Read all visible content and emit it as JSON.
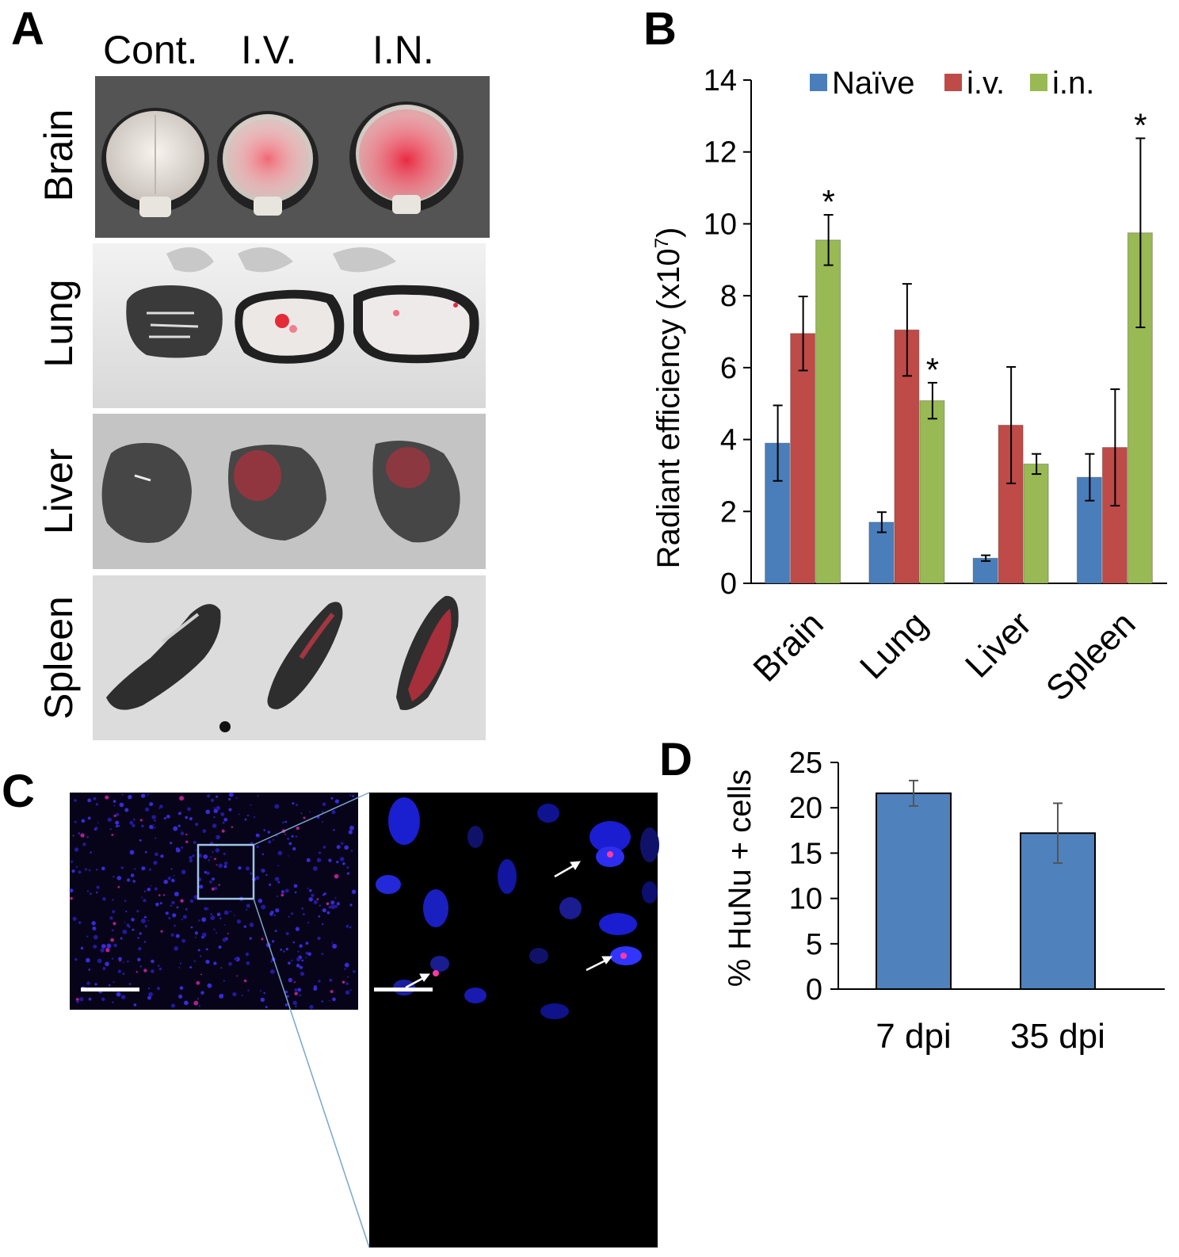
{
  "panel_labels": {
    "a": "A",
    "b": "B",
    "c": "C",
    "d": "D"
  },
  "panel_a": {
    "column_headers": [
      "Cont.",
      "I.V.",
      "I.N."
    ],
    "row_labels": [
      "Brain",
      "Lung",
      "Liver",
      "Spleen"
    ]
  },
  "chart_data": [
    {
      "type": "bar",
      "panel": "B",
      "categories": [
        "Brain",
        "Lung",
        "Liver",
        "Spleen"
      ],
      "series": [
        {
          "name": "Naïve",
          "color": "#4a7ebb",
          "values": [
            3.9,
            1.7,
            0.7,
            2.95
          ],
          "error": [
            1.05,
            0.28,
            0.08,
            0.65
          ]
        },
        {
          "name": "i.v.",
          "color": "#be4b48",
          "values": [
            6.95,
            7.05,
            4.4,
            3.78
          ],
          "error": [
            1.03,
            1.28,
            1.62,
            1.62
          ]
        },
        {
          "name": "i.n.",
          "color": "#98b954",
          "values": [
            9.55,
            5.08,
            3.32,
            9.75
          ],
          "error": [
            0.7,
            0.5,
            0.28,
            2.63
          ]
        }
      ],
      "significance": [
        {
          "category": "Brain",
          "series": "i.n.",
          "label": "*"
        },
        {
          "category": "Lung",
          "series": "i.n.",
          "label": "*"
        },
        {
          "category": "Spleen",
          "series": "i.n.",
          "label": "*"
        }
      ],
      "ylabel": "Radiant efficiency  (x10",
      "ylabel_sup": "7",
      "ylabel_end": ")",
      "ylim": [
        0,
        14
      ],
      "yticks": [
        "0",
        "2",
        "4",
        "6",
        "8",
        "10",
        "12",
        "14"
      ],
      "legend": "top",
      "grid": false
    },
    {
      "type": "bar",
      "panel": "D",
      "categories": [
        "7 dpi",
        "35 dpi"
      ],
      "values": [
        21.6,
        17.2
      ],
      "error": [
        1.4,
        3.3
      ],
      "color": "#4f81bd",
      "ylabel": "% HuNu + cells",
      "ylim": [
        0,
        25
      ],
      "yticks": [
        "0",
        "5",
        "10",
        "15",
        "20",
        "25"
      ],
      "grid": false
    }
  ]
}
